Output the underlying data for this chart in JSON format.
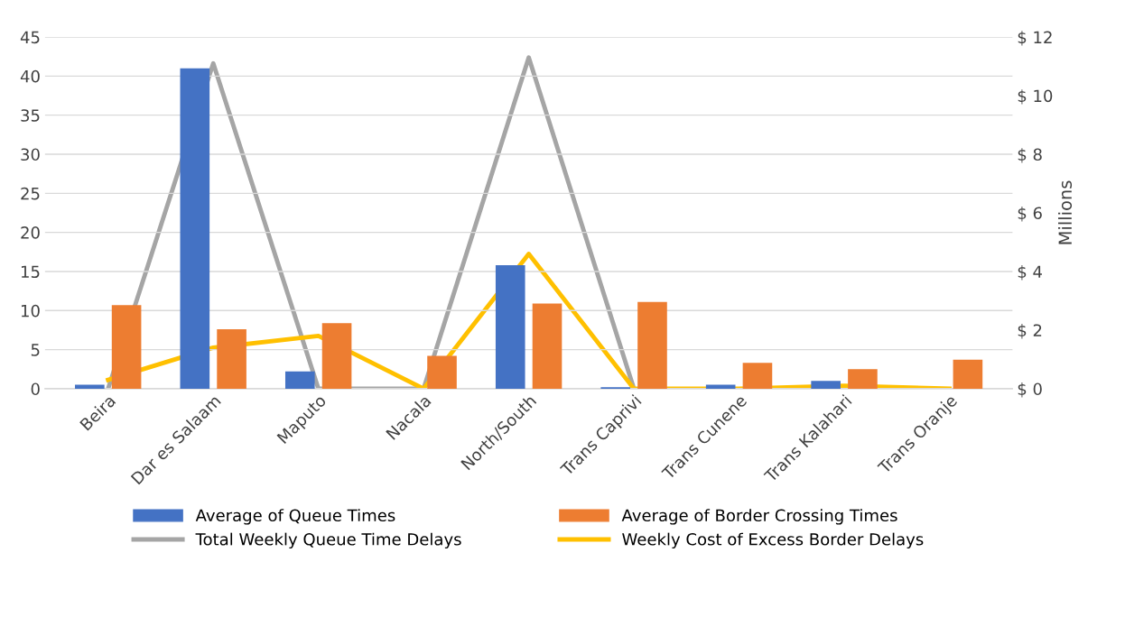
{
  "chart_data": {
    "type": "bar",
    "categories": [
      "Beira",
      "Dar es Salaam",
      "Maputo",
      "Nacala",
      "North/South",
      "Trans Caprivi",
      "Trans Cunene",
      "Trans Kalahari",
      "Trans Oranje"
    ],
    "series": [
      {
        "name": "Average of Queue Times",
        "color": "#4472c4",
        "values": [
          0.5,
          41,
          2.2,
          0,
          15.8,
          0.2,
          0.5,
          1.0,
          0
        ]
      },
      {
        "name": "Average of Border Crossing Times",
        "color": "#ed7d31",
        "values": [
          10.7,
          7.6,
          8.4,
          4.2,
          10.9,
          11.1,
          3.3,
          2.5,
          3.7
        ]
      },
      {
        "name": "Total Weekly Queue Time Delays",
        "color": "#a5a5a5",
        "type": "line",
        "axis": "y2",
        "values": [
          0,
          11.1,
          0,
          0,
          11.3,
          0,
          null,
          null,
          null
        ]
      },
      {
        "name": "Weekly Cost of Excess Border Delays",
        "color": "#ffc000",
        "type": "line",
        "axis": "y2",
        "values": [
          0.3,
          1.4,
          1.8,
          0,
          4.6,
          0,
          0,
          0.1,
          0
        ]
      }
    ],
    "ylim": [
      0,
      45
    ],
    "yticks": [
      0,
      5,
      10,
      15,
      20,
      25,
      30,
      35,
      40,
      45
    ],
    "y2lim": [
      0,
      12
    ],
    "y2ticks": [
      {
        "value": 0,
        "label": "$ 0"
      },
      {
        "value": 2,
        "label": "$ 2"
      },
      {
        "value": 4,
        "label": "$ 4"
      },
      {
        "value": 6,
        "label": "$ 6"
      },
      {
        "value": 8,
        "label": "$ 8"
      },
      {
        "value": 10,
        "label": "$ 10"
      },
      {
        "value": 12,
        "label": "$ 12"
      }
    ],
    "y2label": "Millions",
    "grid": "y",
    "legend": "bottom",
    "marker": "none",
    "line_style": "solid"
  }
}
